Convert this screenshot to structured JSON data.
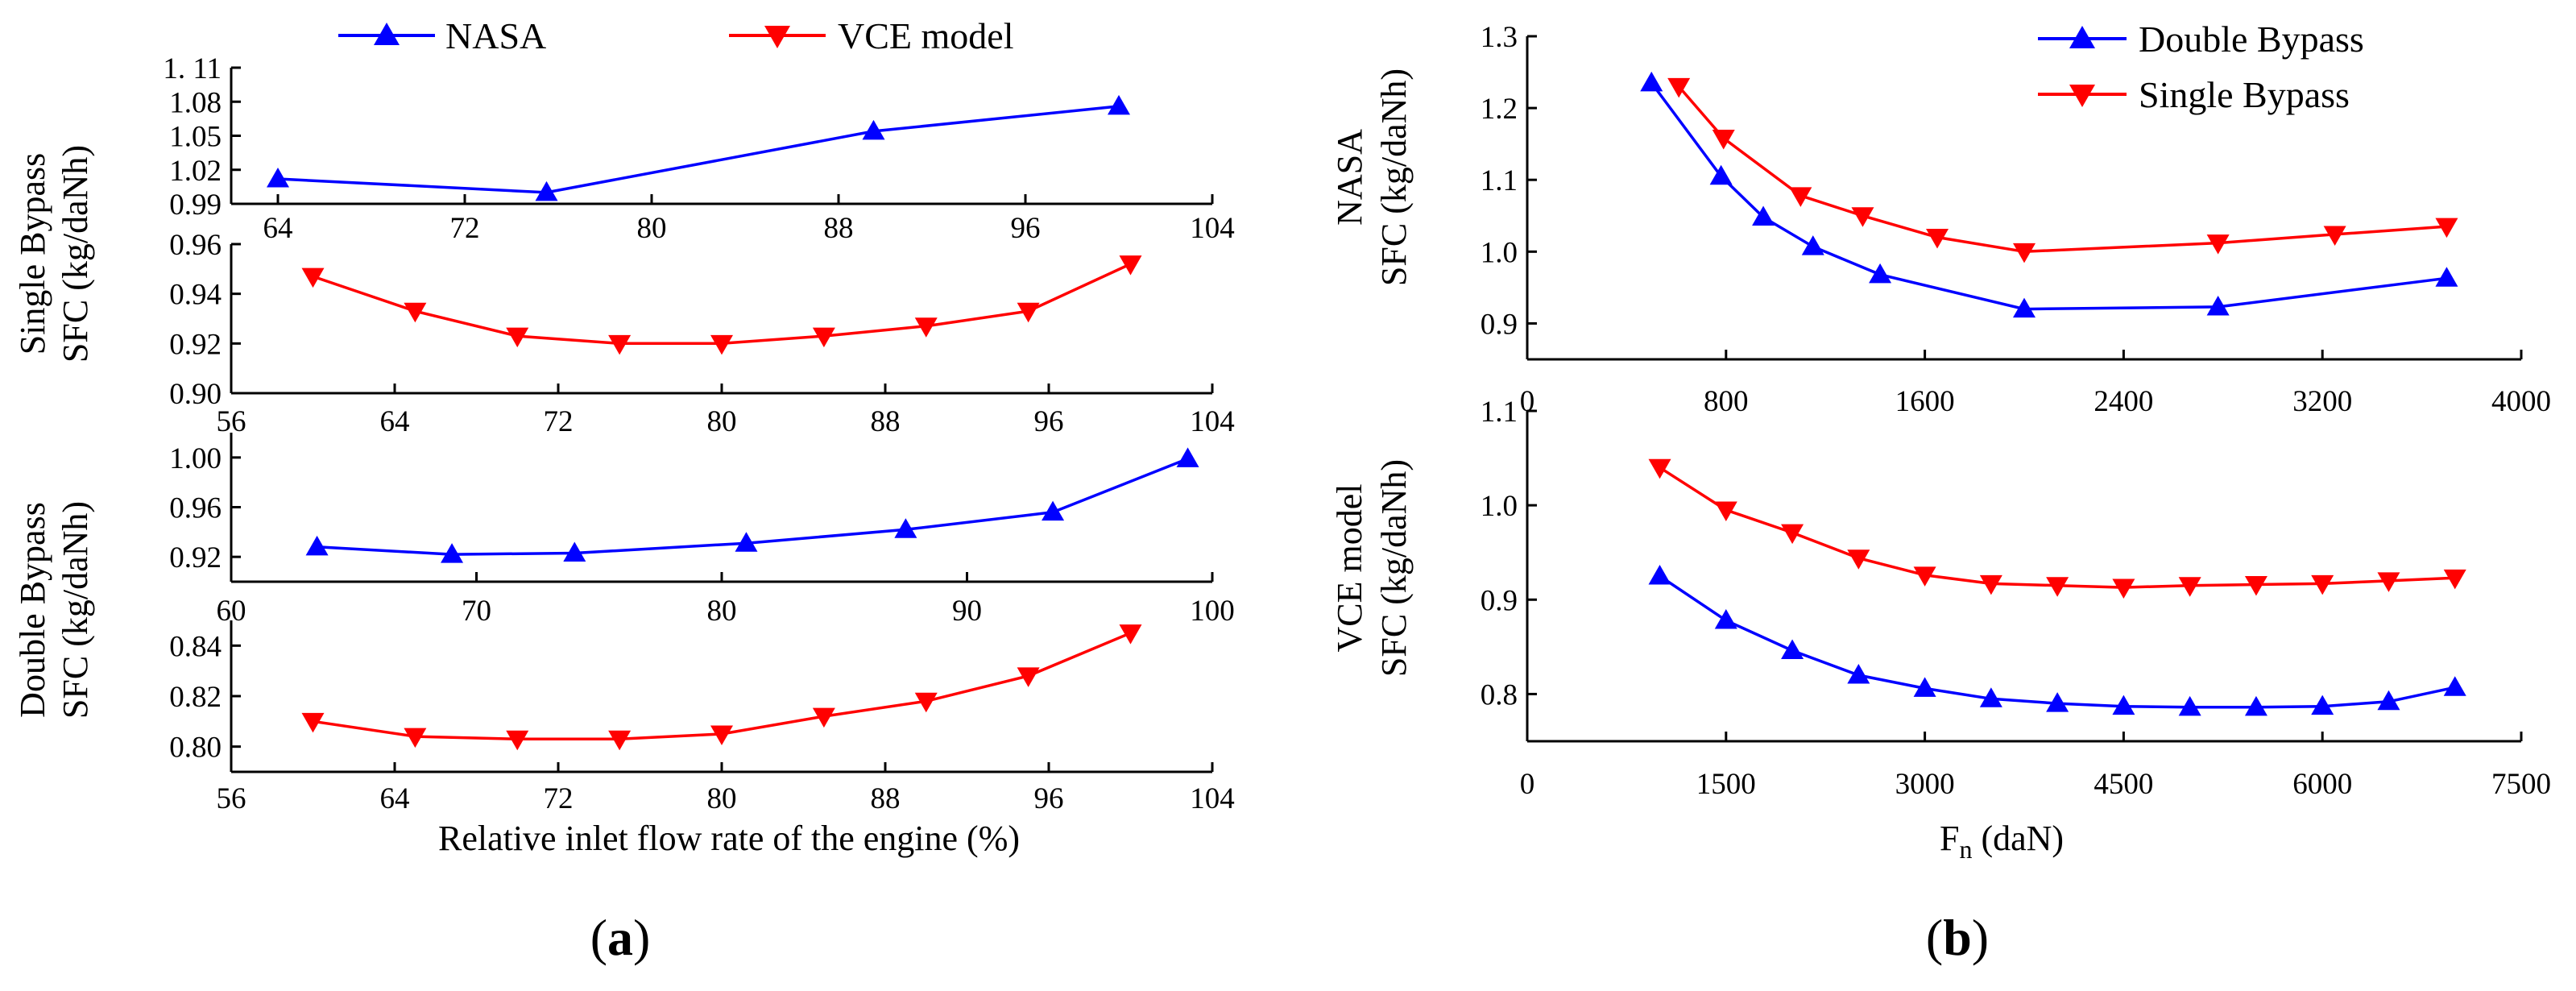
{
  "colors": {
    "blue": "#0000ff",
    "red": "#ff0000",
    "axis": "#000000"
  },
  "figure_a": {
    "legend": [
      "NASA",
      "VCE model"
    ],
    "xlabel": "Relative inlet flow rate of the engine (%)",
    "group_labels": [
      {
        "line1": "Single Bypass",
        "line2": "SFC (kg/daNh)"
      },
      {
        "line1": "Double Bypass",
        "line2": "SFC (kg/daNh)"
      }
    ],
    "panel_label": {
      "open": "(",
      "letter": "a",
      "close": ")"
    }
  },
  "figure_b": {
    "legend": [
      "Double Bypass",
      "Single Bypass"
    ],
    "xlabel_main": "F",
    "xlabel_sub": "n",
    "xlabel_unit": " (daN)",
    "group_labels": [
      {
        "line1": "NASA",
        "line2": "SFC (kg/daNh)"
      },
      {
        "line1": "VCE model",
        "line2": "SFC (kg/daNh)"
      }
    ],
    "panel_label": {
      "open": "(",
      "letter": "b",
      "close": ")"
    }
  },
  "chart_data": [
    {
      "id": "a1",
      "type": "line",
      "title": "Single Bypass SFC - NASA",
      "xlabel": "",
      "ylabel": "Single Bypass SFC (kg/daNh)",
      "xlim": [
        62,
        104
      ],
      "ylim": [
        0.99,
        1.11
      ],
      "xticks": [
        "64",
        "72",
        "80",
        "88",
        "96",
        "104"
      ],
      "yticks": [
        "0.99",
        "1.02",
        "1.05",
        "1.08",
        "1. 11"
      ],
      "series": [
        {
          "name": "NASA",
          "color": "blue",
          "marker": "up",
          "points": [
            [
              64,
              1.012
            ],
            [
              75.5,
              1.0
            ],
            [
              89.5,
              1.054
            ],
            [
              100,
              1.076
            ]
          ]
        }
      ]
    },
    {
      "id": "a2",
      "type": "line",
      "title": "Single Bypass SFC - VCE model",
      "xlabel": "",
      "ylabel": "Single Bypass SFC (kg/daNh)",
      "xlim": [
        56,
        104
      ],
      "ylim": [
        0.9,
        0.96
      ],
      "xticks": [
        "56",
        "64",
        "72",
        "80",
        "88",
        "96",
        "104"
      ],
      "yticks": [
        "0.90",
        "0.92",
        "0.94",
        "0.96"
      ],
      "series": [
        {
          "name": "VCE model",
          "color": "red",
          "marker": "down",
          "points": [
            [
              60,
              0.947
            ],
            [
              65,
              0.933
            ],
            [
              70,
              0.923
            ],
            [
              75,
              0.92
            ],
            [
              80,
              0.92
            ],
            [
              85,
              0.923
            ],
            [
              90,
              0.927
            ],
            [
              95,
              0.933
            ],
            [
              100,
              0.952
            ]
          ]
        }
      ]
    },
    {
      "id": "a3",
      "type": "line",
      "title": "Double Bypass SFC - NASA",
      "xlabel": "",
      "ylabel": "Double Bypass SFC (kg/daNh)",
      "xlim": [
        60,
        100
      ],
      "ylim": [
        0.9,
        1.02
      ],
      "xticks": [
        "60",
        "70",
        "80",
        "90",
        "100"
      ],
      "yticks": [
        "0.92",
        "0.96",
        "1.00"
      ],
      "series": [
        {
          "name": "NASA",
          "color": "blue",
          "marker": "up",
          "points": [
            [
              63.5,
              0.928
            ],
            [
              69,
              0.922
            ],
            [
              74,
              0.923
            ],
            [
              81,
              0.931
            ],
            [
              87.5,
              0.942
            ],
            [
              93.5,
              0.956
            ],
            [
              99,
              0.999
            ]
          ]
        }
      ]
    },
    {
      "id": "a4",
      "type": "line",
      "title": "Double Bypass SFC - VCE model",
      "xlabel": "Relative inlet flow rate of the engine (%)",
      "ylabel": "Double Bypass SFC (kg/daNh)",
      "xlim": [
        56,
        104
      ],
      "ylim": [
        0.79,
        0.85
      ],
      "xticks": [
        "56",
        "64",
        "72",
        "80",
        "88",
        "96",
        "104"
      ],
      "yticks": [
        "0.80",
        "0.82",
        "0.84"
      ],
      "series": [
        {
          "name": "VCE model",
          "color": "red",
          "marker": "down",
          "points": [
            [
              60,
              0.81
            ],
            [
              65,
              0.804
            ],
            [
              70,
              0.803
            ],
            [
              75,
              0.803
            ],
            [
              80,
              0.805
            ],
            [
              85,
              0.812
            ],
            [
              90,
              0.818
            ],
            [
              95,
              0.828
            ],
            [
              100,
              0.845
            ]
          ]
        }
      ]
    },
    {
      "id": "b1",
      "type": "line",
      "title": "NASA SFC",
      "xlabel": "",
      "ylabel": "NASA SFC (kg/daNh)",
      "xlim": [
        0,
        4000
      ],
      "ylim": [
        0.85,
        1.3
      ],
      "xticks": [
        "0",
        "800",
        "1600",
        "2400",
        "3200",
        "4000"
      ],
      "yticks": [
        "0.9",
        "1.0",
        "1.1",
        "1.2",
        "1.3"
      ],
      "series": [
        {
          "name": "Double Bypass",
          "color": "blue",
          "marker": "up",
          "points": [
            [
              500,
              1.235
            ],
            [
              780,
              1.105
            ],
            [
              950,
              1.048
            ],
            [
              1150,
              1.007
            ],
            [
              1420,
              0.968
            ],
            [
              2000,
              0.92
            ],
            [
              2780,
              0.923
            ],
            [
              3700,
              0.963
            ]
          ]
        },
        {
          "name": "Single Bypass",
          "color": "red",
          "marker": "down",
          "points": [
            [
              610,
              1.23
            ],
            [
              790,
              1.158
            ],
            [
              1100,
              1.078
            ],
            [
              1350,
              1.05
            ],
            [
              1650,
              1.02
            ],
            [
              2000,
              1.0
            ],
            [
              2780,
              1.012
            ],
            [
              3250,
              1.024
            ],
            [
              3700,
              1.035
            ]
          ]
        }
      ]
    },
    {
      "id": "b2",
      "type": "line",
      "title": "VCE model SFC",
      "xlabel": "Fn (daN)",
      "ylabel": "VCE model SFC (kg/daNh)",
      "xlim": [
        0,
        7500
      ],
      "ylim": [
        0.75,
        1.1
      ],
      "xticks": [
        "0",
        "1500",
        "3000",
        "4500",
        "6000",
        "7500"
      ],
      "yticks": [
        "0.8",
        "0.9",
        "1.0",
        "1.1"
      ],
      "series": [
        {
          "name": "Double Bypass",
          "color": "blue",
          "marker": "up",
          "points": [
            [
              1000,
              0.925
            ],
            [
              1500,
              0.878
            ],
            [
              2000,
              0.846
            ],
            [
              2500,
              0.82
            ],
            [
              3000,
              0.806
            ],
            [
              3500,
              0.795
            ],
            [
              4000,
              0.79
            ],
            [
              4500,
              0.787
            ],
            [
              5000,
              0.786
            ],
            [
              5500,
              0.786
            ],
            [
              6000,
              0.787
            ],
            [
              6500,
              0.792
            ],
            [
              7000,
              0.807
            ]
          ]
        },
        {
          "name": "Single Bypass",
          "color": "red",
          "marker": "down",
          "points": [
            [
              1000,
              1.04
            ],
            [
              1500,
              0.995
            ],
            [
              2000,
              0.971
            ],
            [
              2500,
              0.944
            ],
            [
              3000,
              0.926
            ],
            [
              3500,
              0.917
            ],
            [
              4000,
              0.915
            ],
            [
              4500,
              0.913
            ],
            [
              5000,
              0.915
            ],
            [
              5500,
              0.916
            ],
            [
              6000,
              0.917
            ],
            [
              6500,
              0.92
            ],
            [
              7000,
              0.923
            ]
          ]
        }
      ]
    }
  ]
}
